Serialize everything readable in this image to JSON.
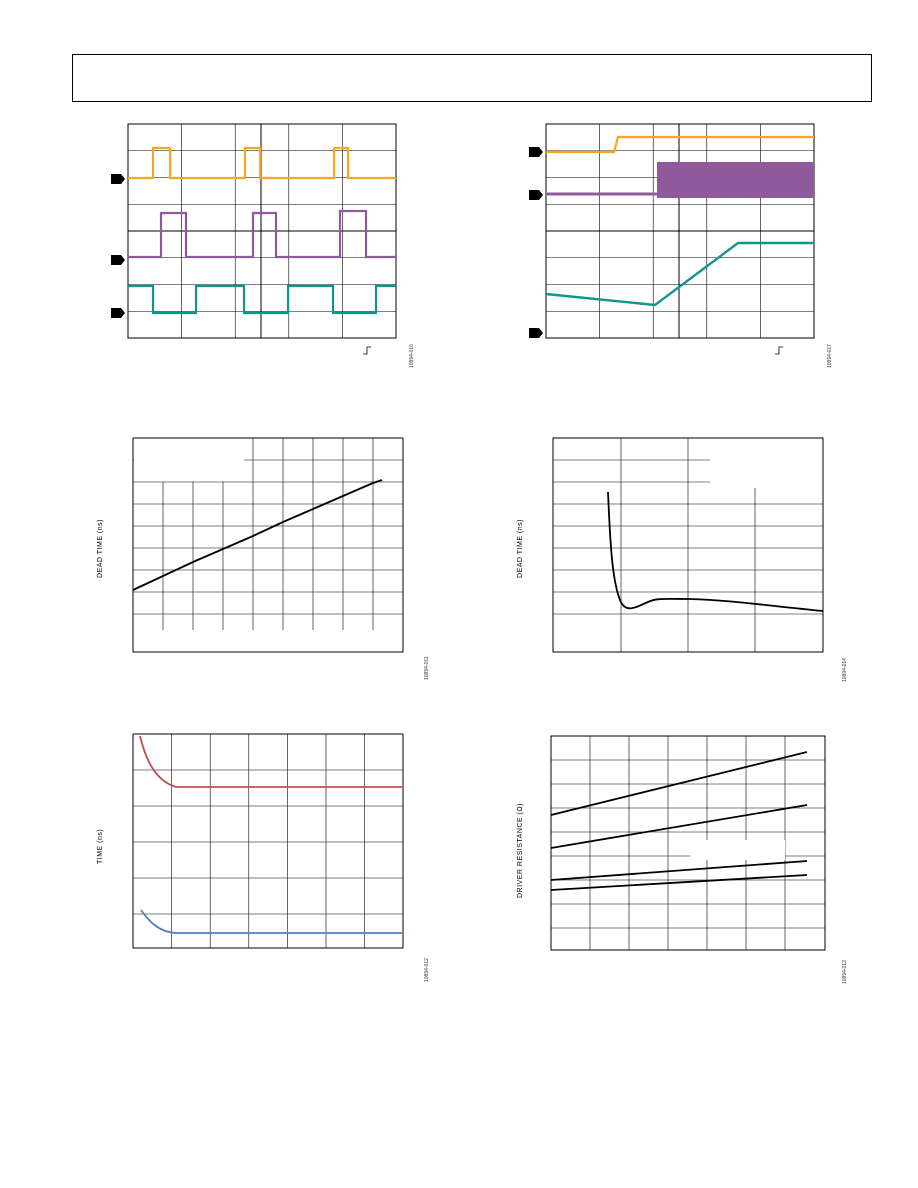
{
  "page": {
    "figure_ids": [
      "10894-016",
      "10894-017",
      "10894-011",
      "10894-014",
      "10894-012",
      "10894-013"
    ]
  },
  "colors": {
    "orange": "#f5a623",
    "purple": "#8e5a9c",
    "teal": "#13958f",
    "red": "#c0504d",
    "blue": "#4f81bd",
    "black": "#000000"
  },
  "chart_data": [
    {
      "type": "line",
      "title": "",
      "xlabel": "",
      "ylabel": "",
      "grid": true,
      "series": [
        {
          "color_key": "orange",
          "level_low": 0,
          "level_high": 1,
          "x": [
            0,
            1,
            1.2,
            2,
            3.2,
            3.4,
            5,
            7.7,
            7.9,
            8.4
          ],
          "values": [
            0,
            0,
            1,
            0,
            0,
            1,
            0,
            0,
            1,
            0
          ]
        },
        {
          "color_key": "purple",
          "level_low": 0,
          "level_high": 1
        },
        {
          "color_key": "teal",
          "level_low": 0,
          "level_high": 1
        }
      ]
    },
    {
      "type": "line",
      "title": "",
      "xlabel": "",
      "ylabel": "",
      "grid": true,
      "series": [
        {
          "color_key": "orange"
        },
        {
          "color_key": "purple"
        },
        {
          "color_key": "teal"
        }
      ]
    },
    {
      "type": "line",
      "title": "",
      "xlabel": "",
      "ylabel": "DEAD TIME (ns)",
      "grid": true,
      "series": [
        {
          "color_key": "black",
          "x": [
            0,
            1,
            2,
            3,
            4,
            5,
            6,
            7,
            8
          ],
          "values": [
            1.2,
            1.85,
            2.5,
            3.1,
            3.75,
            4.4,
            5.0,
            5.6,
            6.0
          ]
        }
      ],
      "xlim": [
        0,
        9
      ],
      "ylim": [
        0,
        10
      ]
    },
    {
      "type": "line",
      "title": "",
      "xlabel": "",
      "ylabel": "DEAD TIME (ns)",
      "grid": true,
      "series": [
        {
          "color_key": "black",
          "x": [
            0.8,
            0.85,
            0.95,
            1.1,
            1.3,
            1.6,
            2,
            3,
            4
          ],
          "values": [
            7.5,
            6.0,
            3.0,
            1.2,
            0.4,
            0.7,
            1.1,
            0.9,
            0.2
          ]
        }
      ],
      "xlim": [
        0,
        4
      ],
      "ylim": [
        -2,
        10
      ]
    },
    {
      "type": "line",
      "title": "",
      "xlabel": "",
      "ylabel": "TIME (ns)",
      "grid": true,
      "series": [
        {
          "color_key": "red",
          "x": [
            0,
            0.1,
            0.25,
            0.5,
            1,
            2,
            3,
            4,
            5,
            6,
            7
          ],
          "values": [
            6.0,
            5.6,
            5.2,
            4.8,
            4.55,
            4.55,
            4.54,
            4.55,
            4.55,
            4.55,
            4.55
          ]
        },
        {
          "color_key": "blue",
          "x": [
            0.15,
            0.3,
            0.5,
            0.8,
            1,
            2,
            3,
            4,
            5,
            6,
            7
          ],
          "values": [
            1.05,
            0.9,
            0.75,
            0.62,
            0.6,
            0.6,
            0.61,
            0.6,
            0.6,
            0.6,
            0.6
          ]
        }
      ],
      "xlim": [
        0,
        7
      ],
      "ylim": [
        0,
        6
      ]
    },
    {
      "type": "line",
      "title": "",
      "xlabel": "",
      "ylabel": "DRIVER RESISTANCE (Ω)",
      "grid": true,
      "series": [
        {
          "color_key": "black",
          "x": [
            0,
            6.6
          ],
          "values": [
            6.0,
            8.7
          ]
        },
        {
          "color_key": "black",
          "x": [
            0,
            6.6
          ],
          "values": [
            4.6,
            6.4
          ]
        },
        {
          "color_key": "black",
          "x": [
            0,
            6.6
          ],
          "values": [
            3.1,
            4.0
          ]
        },
        {
          "color_key": "black",
          "x": [
            0,
            6.6
          ],
          "values": [
            2.7,
            3.4
          ]
        }
      ],
      "xlim": [
        0,
        7
      ],
      "ylim": [
        0,
        9
      ]
    }
  ]
}
